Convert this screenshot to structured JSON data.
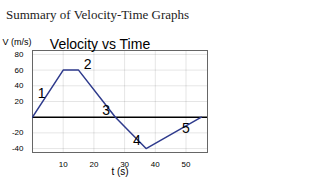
{
  "chart_data": {
    "type": "line",
    "heading": "Summary of Velocity-Time Graphs",
    "title": "Velocity vs Time",
    "x_label": "t (s)",
    "y_label": "V (m/s)",
    "x": [
      0,
      10,
      15,
      27,
      37,
      55
    ],
    "values": [
      0,
      60,
      60,
      0,
      -40,
      0
    ],
    "color": "#2e3a8c",
    "xlim": [
      0,
      57
    ],
    "xticks": [
      10,
      20,
      30,
      40,
      50
    ],
    "ylim": [
      -45,
      85
    ],
    "yticks": [
      -40,
      -20,
      20,
      40,
      60,
      80
    ],
    "grid": true,
    "annotations": [
      {
        "text": "1",
        "x": 3,
        "y": 30
      },
      {
        "text": "2",
        "x": 18,
        "y": 67
      },
      {
        "text": "3",
        "x": 24,
        "y": 8
      },
      {
        "text": "4",
        "x": 34,
        "y": -30
      },
      {
        "text": "5",
        "x": 50,
        "y": -14
      }
    ]
  }
}
